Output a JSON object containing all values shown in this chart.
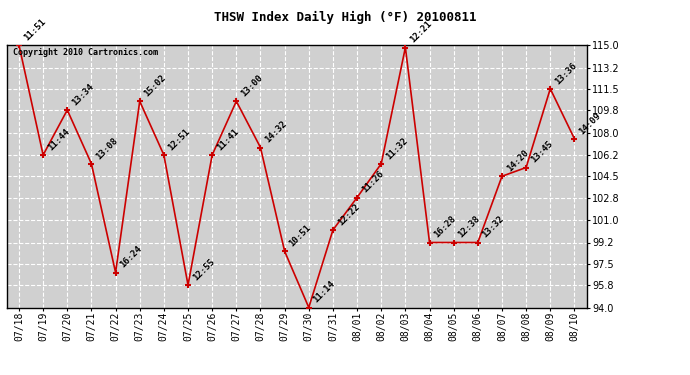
{
  "title": "THSW Index Daily High (°F) 20100811",
  "copyright": "Copyright 2010 Cartronics.com",
  "dates": [
    "07/18",
    "07/19",
    "07/20",
    "07/21",
    "07/22",
    "07/23",
    "07/24",
    "07/25",
    "07/26",
    "07/27",
    "07/28",
    "07/29",
    "07/30",
    "07/31",
    "08/01",
    "08/02",
    "08/03",
    "08/04",
    "08/05",
    "08/06",
    "08/07",
    "08/08",
    "08/09",
    "08/10"
  ],
  "values": [
    115.0,
    106.2,
    109.8,
    105.5,
    96.8,
    110.5,
    106.2,
    95.8,
    106.2,
    110.5,
    106.8,
    98.5,
    94.0,
    100.2,
    102.8,
    105.5,
    114.8,
    99.2,
    99.2,
    99.2,
    104.5,
    105.2,
    111.5,
    107.5
  ],
  "times": [
    "11:51",
    "11:44",
    "13:34",
    "13:08",
    "16:24",
    "15:02",
    "12:51",
    "12:55",
    "11:41",
    "13:00",
    "14:32",
    "10:51",
    "11:14",
    "12:22",
    "11:26",
    "11:32",
    "12:21",
    "16:28",
    "12:38",
    "13:32",
    "14:20",
    "13:45",
    "13:36",
    "14:09"
  ],
  "ylim": [
    94.0,
    115.0
  ],
  "yticks": [
    94.0,
    95.8,
    97.5,
    99.2,
    101.0,
    102.8,
    104.5,
    106.2,
    108.0,
    109.8,
    111.5,
    113.2,
    115.0
  ],
  "line_color": "#cc0000",
  "marker_color": "#cc0000",
  "bg_color": "#ffffff",
  "plot_bg_color": "#d0d0d0",
  "grid_color": "#ffffff",
  "title_fontsize": 9,
  "label_fontsize": 6.5,
  "tick_fontsize": 7,
  "copyright_fontsize": 6
}
